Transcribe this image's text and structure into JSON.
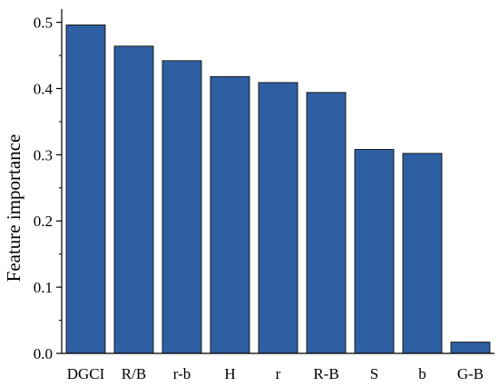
{
  "chart_data": {
    "type": "bar",
    "title": "",
    "xlabel": "",
    "ylabel": "Feature importance",
    "categories": [
      "DGCI",
      "R/B",
      "r-b",
      "H",
      "r",
      "R-B",
      "S",
      "b",
      "G-B"
    ],
    "values": [
      0.496,
      0.464,
      0.442,
      0.418,
      0.409,
      0.394,
      0.308,
      0.302,
      0.017
    ],
    "ylim": [
      0,
      0.52
    ],
    "yticks": [
      "0.0",
      "0.1",
      "0.2",
      "0.3",
      "0.4",
      "0.5"
    ],
    "bar_color": "#2e5fa3",
    "bar_edge_color": "#1a1a1a",
    "grid": false,
    "legend": "none"
  }
}
